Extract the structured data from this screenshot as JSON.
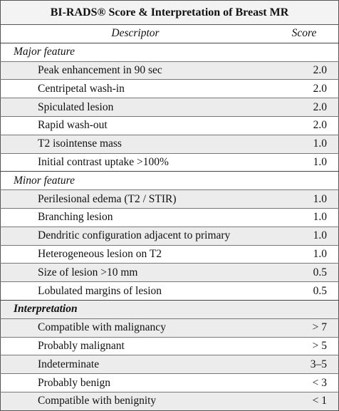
{
  "table": {
    "title": "BI-RADS® Score & Interpretation of Breast MR",
    "header": [
      "Descriptor",
      "Score"
    ],
    "sections": [
      {
        "label": "Major feature",
        "rows": [
          [
            "Peak enhancement in 90 sec",
            "2.0"
          ],
          [
            "Centripetal wash-in",
            "2.0"
          ],
          [
            "Spiculated lesion",
            "2.0"
          ],
          [
            "Rapid wash-out",
            "2.0"
          ],
          [
            "T2 isointense mass",
            "1.0"
          ],
          [
            "Initial contrast uptake >100%",
            "1.0"
          ]
        ]
      },
      {
        "label": "Minor feature",
        "rows": [
          [
            "Perilesional edema (T2 / STIR)",
            "1.0"
          ],
          [
            "Branching lesion",
            "1.0"
          ],
          [
            "Dendritic configuration adjacent to primary",
            "1.0"
          ],
          [
            "Heterogeneous lesion on T2",
            "1.0"
          ],
          [
            "Size of lesion >10 mm",
            "0.5"
          ],
          [
            "Lobulated margins of lesion",
            "0.5"
          ]
        ]
      },
      {
        "label": "Interpretation",
        "rows": [
          [
            "Compatible with malignancy",
            "> 7"
          ],
          [
            "Probably malignant",
            "> 5"
          ],
          [
            "Indeterminate",
            "3–5"
          ],
          [
            "Probably benign",
            "< 3"
          ],
          [
            "Compatible with benignity",
            "< 1"
          ]
        ]
      }
    ]
  }
}
